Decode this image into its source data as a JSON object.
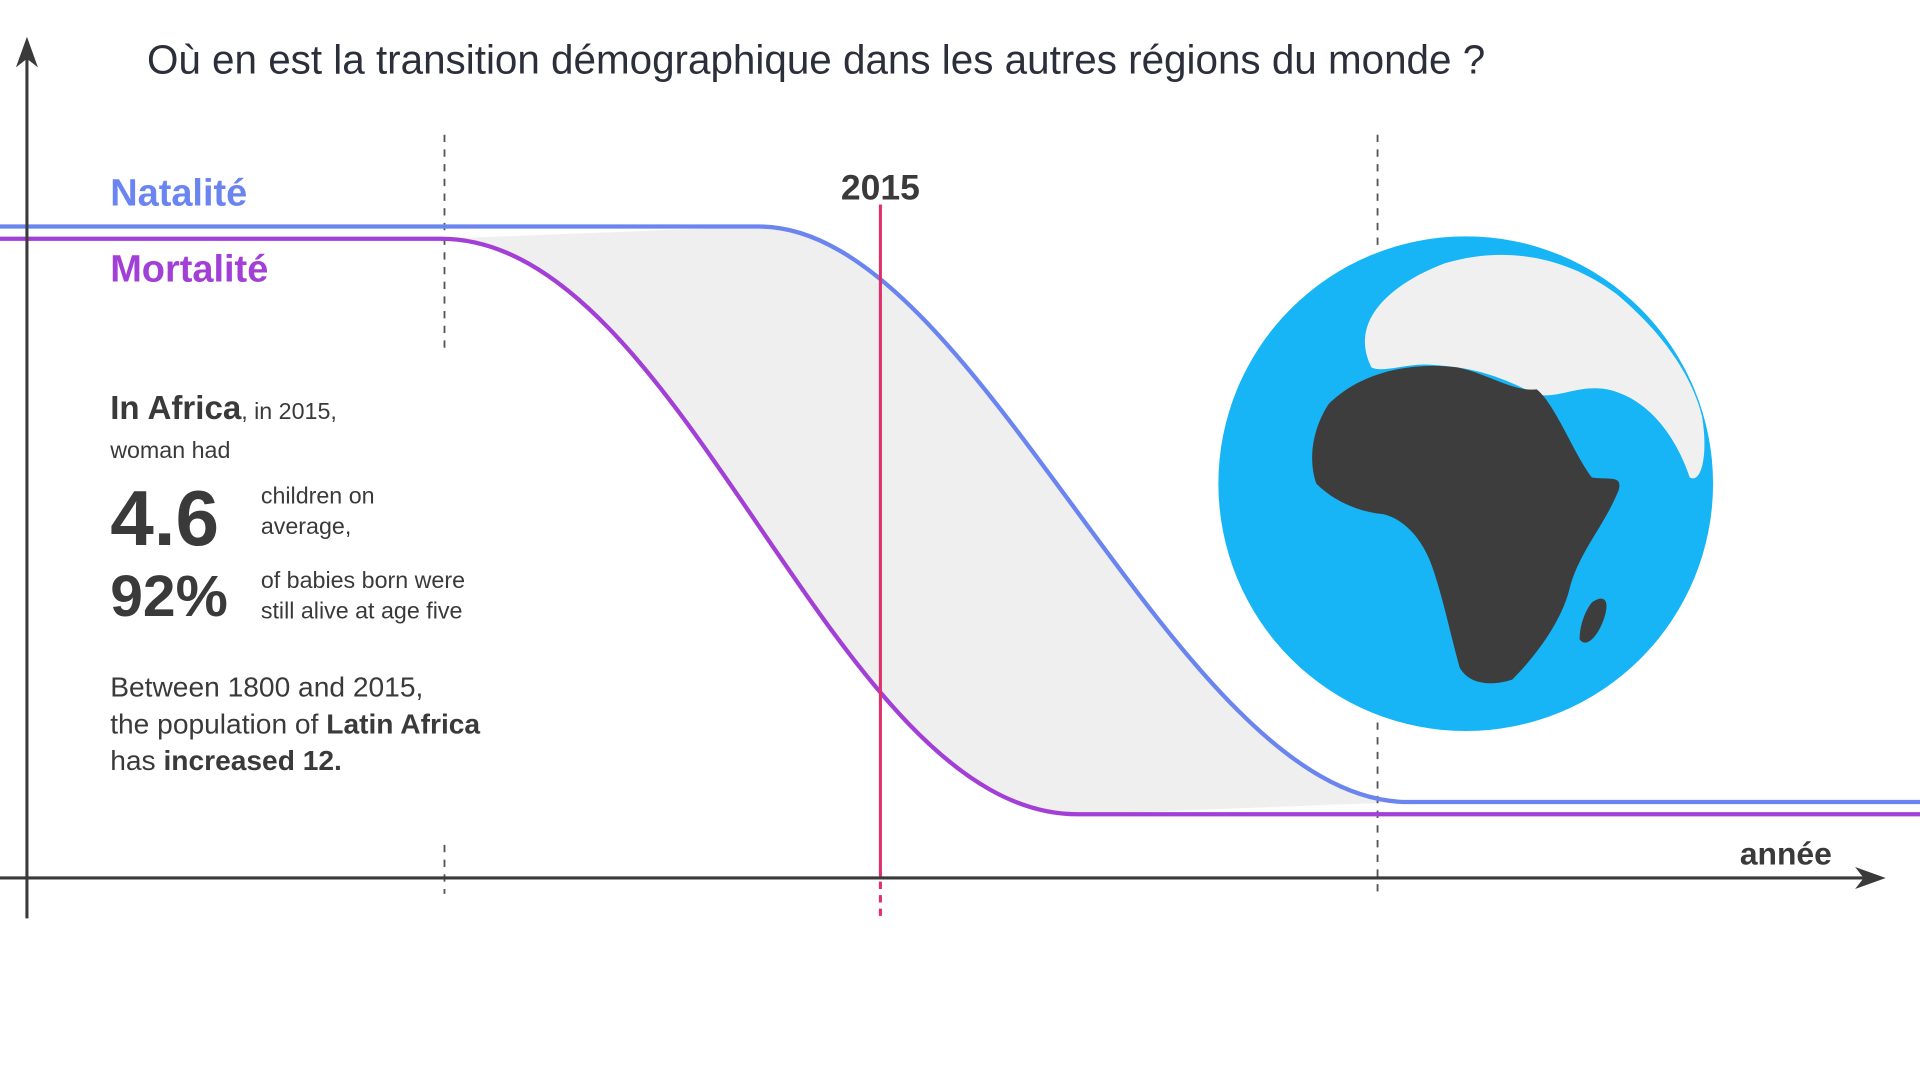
{
  "title": "Où en est la transition démographique dans les autres régions du monde ?",
  "legend": {
    "birth": "Natalité",
    "death": "Mortalité"
  },
  "marker_year": "2015",
  "x_axis_label": "année",
  "intro": {
    "region": "In Africa",
    "context": ", in 2015,",
    "line_2": "woman had"
  },
  "stats": [
    {
      "figure": "4.6",
      "label_lines": [
        "children on",
        "average,"
      ]
    },
    {
      "figure": "92%",
      "label_lines": [
        "of babies born were",
        "still alive at age five"
      ]
    }
  ],
  "paragraph": [
    [
      {
        "text": "Between 1800 and 2015,",
        "bold": false
      }
    ],
    [
      {
        "text": "the population of ",
        "bold": false
      },
      {
        "text": "Latin Africa",
        "bold": true
      }
    ],
    [
      {
        "text": "has ",
        "bold": false
      },
      {
        "text": "increased 12.",
        "bold": true
      }
    ]
  ]
}
